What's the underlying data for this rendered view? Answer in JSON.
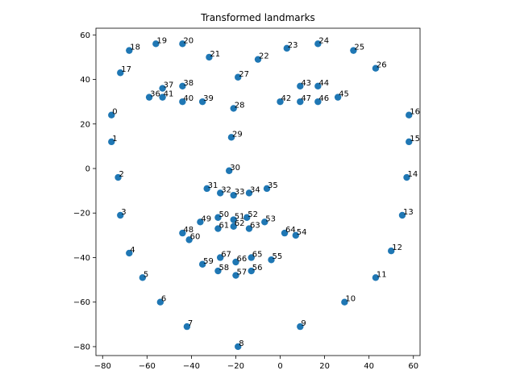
{
  "chart_data": {
    "type": "scatter",
    "title": "Transformed landmarks",
    "xlabel": "",
    "ylabel": "",
    "xlim": [
      -83,
      63
    ],
    "ylim": [
      -84,
      63
    ],
    "xticks": [
      -80,
      -60,
      -40,
      -20,
      0,
      20,
      40,
      60
    ],
    "yticks": [
      -80,
      -60,
      -40,
      -20,
      0,
      20,
      40,
      60
    ],
    "grid": false,
    "marker_color": "#1f77b4",
    "points": [
      {
        "label": "0",
        "x": -76,
        "y": 24
      },
      {
        "label": "1",
        "x": -76,
        "y": 12
      },
      {
        "label": "2",
        "x": -73,
        "y": -4
      },
      {
        "label": "3",
        "x": -72,
        "y": -21
      },
      {
        "label": "4",
        "x": -68,
        "y": -38
      },
      {
        "label": "5",
        "x": -62,
        "y": -49
      },
      {
        "label": "6",
        "x": -54,
        "y": -60
      },
      {
        "label": "7",
        "x": -42,
        "y": -71
      },
      {
        "label": "8",
        "x": -19,
        "y": -80
      },
      {
        "label": "9",
        "x": 9,
        "y": -71
      },
      {
        "label": "10",
        "x": 29,
        "y": -60
      },
      {
        "label": "11",
        "x": 43,
        "y": -49
      },
      {
        "label": "12",
        "x": 50,
        "y": -37
      },
      {
        "label": "13",
        "x": 55,
        "y": -21
      },
      {
        "label": "14",
        "x": 57,
        "y": -4
      },
      {
        "label": "15",
        "x": 58,
        "y": 12
      },
      {
        "label": "16",
        "x": 58,
        "y": 24
      },
      {
        "label": "17",
        "x": -72,
        "y": 43
      },
      {
        "label": "18",
        "x": -68,
        "y": 53
      },
      {
        "label": "19",
        "x": -56,
        "y": 56
      },
      {
        "label": "20",
        "x": -44,
        "y": 56
      },
      {
        "label": "21",
        "x": -32,
        "y": 50
      },
      {
        "label": "22",
        "x": -10,
        "y": 49
      },
      {
        "label": "23",
        "x": 3,
        "y": 54
      },
      {
        "label": "24",
        "x": 17,
        "y": 56
      },
      {
        "label": "25",
        "x": 33,
        "y": 53
      },
      {
        "label": "26",
        "x": 43,
        "y": 45
      },
      {
        "label": "27",
        "x": -19,
        "y": 41
      },
      {
        "label": "28",
        "x": -21,
        "y": 27
      },
      {
        "label": "29",
        "x": -22,
        "y": 14
      },
      {
        "label": "30",
        "x": -23,
        "y": -1
      },
      {
        "label": "31",
        "x": -33,
        "y": -9
      },
      {
        "label": "32",
        "x": -27,
        "y": -11
      },
      {
        "label": "33",
        "x": -21,
        "y": -12
      },
      {
        "label": "34",
        "x": -14,
        "y": -11
      },
      {
        "label": "35",
        "x": -6,
        "y": -9
      },
      {
        "label": "36",
        "x": -59,
        "y": 32
      },
      {
        "label": "37",
        "x": -53,
        "y": 36
      },
      {
        "label": "38",
        "x": -44,
        "y": 37
      },
      {
        "label": "39",
        "x": -35,
        "y": 30
      },
      {
        "label": "40",
        "x": -44,
        "y": 30
      },
      {
        "label": "41",
        "x": -53,
        "y": 32
      },
      {
        "label": "42",
        "x": 0,
        "y": 30
      },
      {
        "label": "43",
        "x": 9,
        "y": 37
      },
      {
        "label": "44",
        "x": 17,
        "y": 37
      },
      {
        "label": "45",
        "x": 26,
        "y": 32
      },
      {
        "label": "46",
        "x": 17,
        "y": 30
      },
      {
        "label": "47",
        "x": 9,
        "y": 30
      },
      {
        "label": "48",
        "x": -44,
        "y": -29
      },
      {
        "label": "49",
        "x": -36,
        "y": -24
      },
      {
        "label": "50",
        "x": -28,
        "y": -22
      },
      {
        "label": "51",
        "x": -21,
        "y": -23
      },
      {
        "label": "52",
        "x": -15,
        "y": -22
      },
      {
        "label": "53",
        "x": -7,
        "y": -24
      },
      {
        "label": "54",
        "x": 7,
        "y": -30
      },
      {
        "label": "55",
        "x": -4,
        "y": -41
      },
      {
        "label": "56",
        "x": -13,
        "y": -46
      },
      {
        "label": "57",
        "x": -20,
        "y": -48
      },
      {
        "label": "58",
        "x": -28,
        "y": -46
      },
      {
        "label": "59",
        "x": -35,
        "y": -43
      },
      {
        "label": "60",
        "x": -41,
        "y": -32
      },
      {
        "label": "61",
        "x": -28,
        "y": -27
      },
      {
        "label": "62",
        "x": -21,
        "y": -26
      },
      {
        "label": "63",
        "x": -14,
        "y": -27
      },
      {
        "label": "64",
        "x": 2,
        "y": -29
      },
      {
        "label": "65",
        "x": -13,
        "y": -40
      },
      {
        "label": "66",
        "x": -20,
        "y": -42
      },
      {
        "label": "67",
        "x": -27,
        "y": -40
      }
    ]
  }
}
